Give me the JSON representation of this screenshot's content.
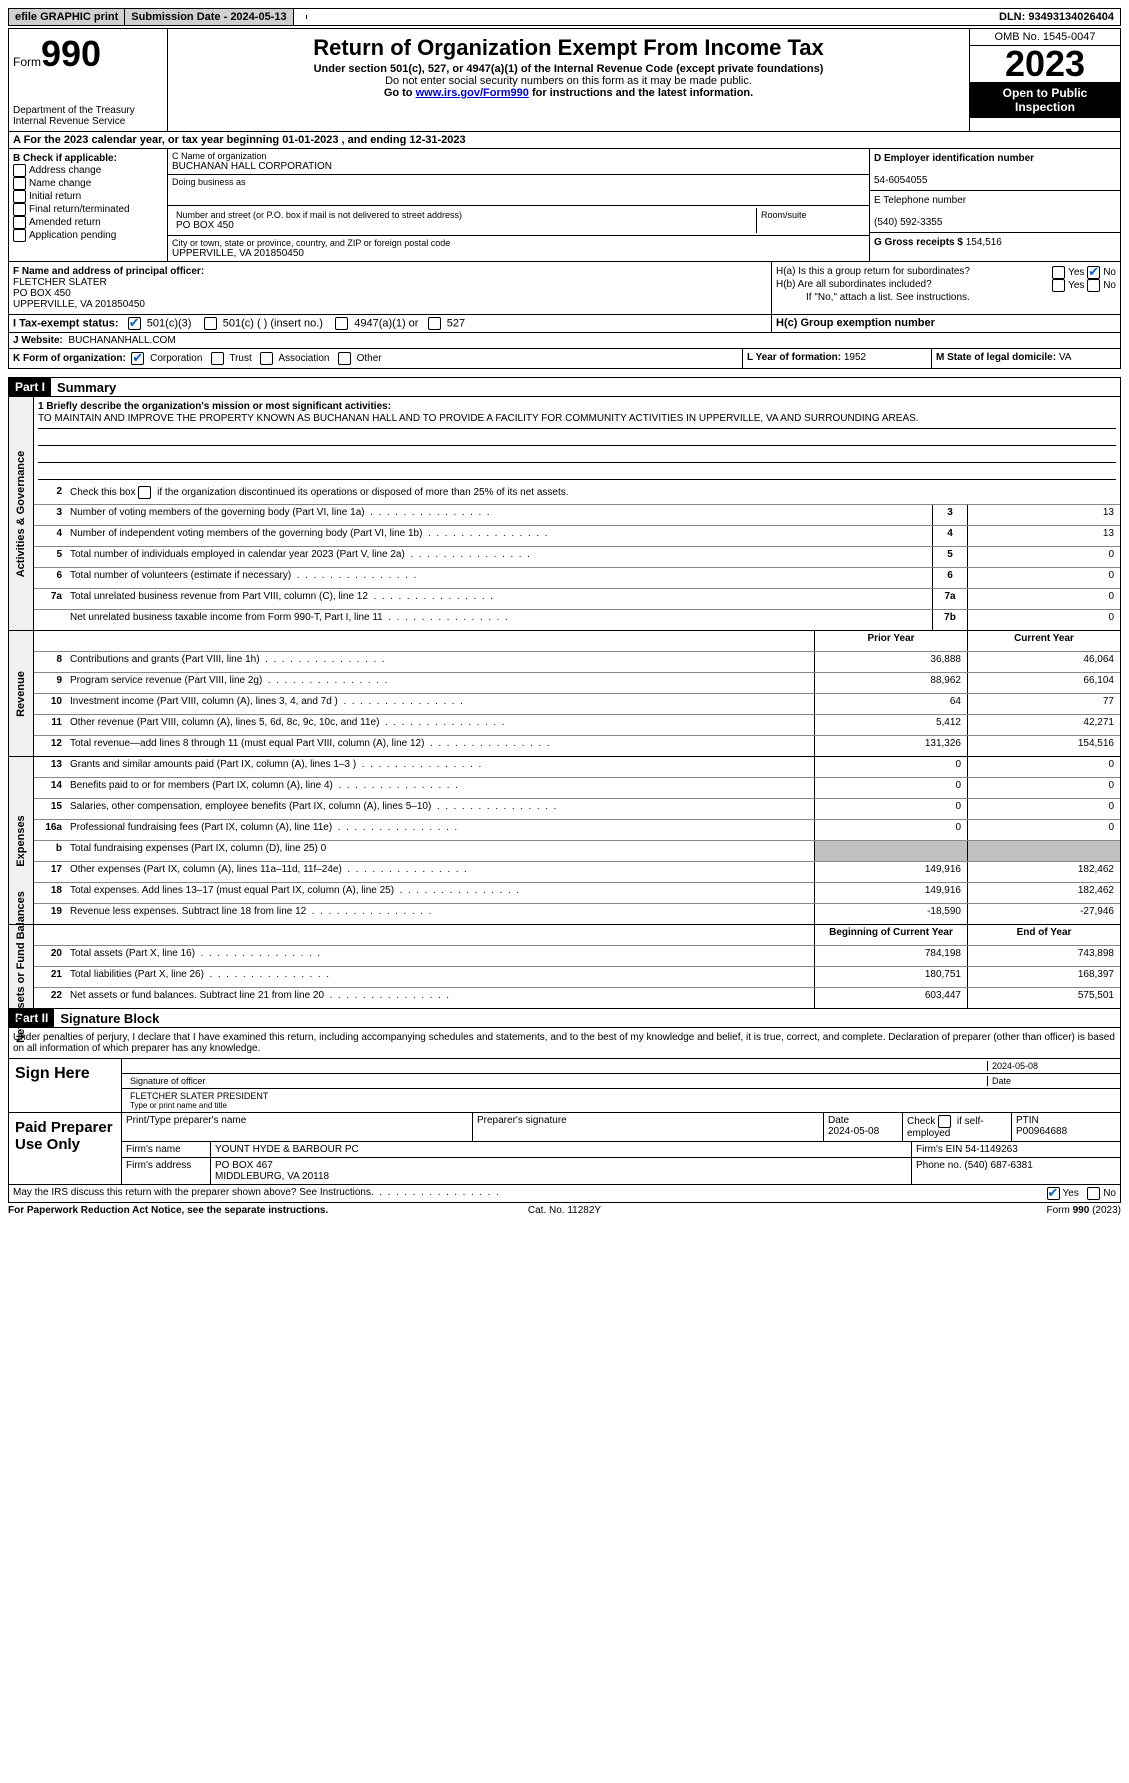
{
  "topbar": {
    "efile": "efile GRAPHIC print",
    "submission_label": "Submission Date - 2024-05-13",
    "dln": "DLN: 93493134026404"
  },
  "header": {
    "form_prefix": "Form",
    "form_number": "990",
    "dept": "Department of the Treasury",
    "irs": "Internal Revenue Service",
    "title": "Return of Organization Exempt From Income Tax",
    "subtitle": "Under section 501(c), 527, or 4947(a)(1) of the Internal Revenue Code (except private foundations)",
    "warn": "Do not enter social security numbers on this form as it may be made public.",
    "goto_prefix": "Go to ",
    "goto_link": "www.irs.gov/Form990",
    "goto_suffix": " for instructions and the latest information.",
    "omb": "OMB No. 1545-0047",
    "year": "2023",
    "open": "Open to Public Inspection"
  },
  "row_a": "A For the 2023 calendar year, or tax year beginning 01-01-2023   , and ending 12-31-2023",
  "section_b": {
    "label": "B Check if applicable:",
    "items": [
      "Address change",
      "Name change",
      "Initial return",
      "Final return/terminated",
      "Amended return",
      "Application pending"
    ]
  },
  "section_c": {
    "name_lbl": "C Name of organization",
    "name": "BUCHANAN HALL CORPORATION",
    "dba_lbl": "Doing business as",
    "street_lbl": "Number and street (or P.O. box if mail is not delivered to street address)",
    "street": "PO BOX 450",
    "suite_lbl": "Room/suite",
    "city_lbl": "City or town, state or province, country, and ZIP or foreign postal code",
    "city": "UPPERVILLE, VA  201850450"
  },
  "section_d": {
    "ein_lbl": "D Employer identification number",
    "ein": "54-6054055",
    "phone_lbl": "E Telephone number",
    "phone": "(540) 592-3355",
    "gross_lbl": "G Gross receipts $",
    "gross": "154,516"
  },
  "section_f": {
    "label": "F Name and address of principal officer:",
    "name": "FLETCHER SLATER",
    "addr1": "PO BOX 450",
    "addr2": "UPPERVILLE, VA  201850450"
  },
  "section_h": {
    "ha": "H(a)  Is this a group return for subordinates?",
    "hb": "H(b)  Are all subordinates included?",
    "hb_note": "If \"No,\" attach a list. See instructions.",
    "hc": "H(c)  Group exemption number",
    "yes": "Yes",
    "no": "No"
  },
  "row_i": {
    "label": "I   Tax-exempt status:",
    "opt1": "501(c)(3)",
    "opt2": "501(c) (  ) (insert no.)",
    "opt3": "4947(a)(1) or",
    "opt4": "527"
  },
  "row_j": {
    "label": "J   Website:",
    "value": "BUCHANANHALL.COM"
  },
  "row_k": {
    "label": "K Form of organization:",
    "opts": [
      "Corporation",
      "Trust",
      "Association",
      "Other"
    ],
    "l_label": "L Year of formation:",
    "l_val": "1952",
    "m_label": "M State of legal domicile:",
    "m_val": "VA"
  },
  "part1": {
    "header": "Part I",
    "title": "Summary",
    "mission_lbl": "1  Briefly describe the organization's mission or most significant activities:",
    "mission": "TO MAINTAIN AND IMPROVE THE PROPERTY KNOWN AS BUCHANAN HALL AND TO PROVIDE A FACILITY FOR COMMUNITY ACTIVITIES IN UPPERVILLE, VA AND SURROUNDING AREAS.",
    "line2": "Check this box      if the organization discontinued its operations or disposed of more than 25% of its net assets."
  },
  "sides": {
    "gov": "Activities & Governance",
    "rev": "Revenue",
    "exp": "Expenses",
    "net": "Net Assets or Fund Balances"
  },
  "gov_rows": [
    {
      "n": "3",
      "d": "Number of voting members of the governing body (Part VI, line 1a)",
      "box": "3",
      "v": "13"
    },
    {
      "n": "4",
      "d": "Number of independent voting members of the governing body (Part VI, line 1b)",
      "box": "4",
      "v": "13"
    },
    {
      "n": "5",
      "d": "Total number of individuals employed in calendar year 2023 (Part V, line 2a)",
      "box": "5",
      "v": "0"
    },
    {
      "n": "6",
      "d": "Total number of volunteers (estimate if necessary)",
      "box": "6",
      "v": "0"
    },
    {
      "n": "7a",
      "d": "Total unrelated business revenue from Part VIII, column (C), line 12",
      "box": "7a",
      "v": "0"
    },
    {
      "n": "",
      "d": "Net unrelated business taxable income from Form 990-T, Part I, line 11",
      "box": "7b",
      "v": "0"
    }
  ],
  "year_hdr": {
    "prior": "Prior Year",
    "current": "Current Year"
  },
  "rev_rows": [
    {
      "n": "8",
      "d": "Contributions and grants (Part VIII, line 1h)",
      "p": "36,888",
      "c": "46,064"
    },
    {
      "n": "9",
      "d": "Program service revenue (Part VIII, line 2g)",
      "p": "88,962",
      "c": "66,104"
    },
    {
      "n": "10",
      "d": "Investment income (Part VIII, column (A), lines 3, 4, and 7d )",
      "p": "64",
      "c": "77"
    },
    {
      "n": "11",
      "d": "Other revenue (Part VIII, column (A), lines 5, 6d, 8c, 9c, 10c, and 11e)",
      "p": "5,412",
      "c": "42,271"
    },
    {
      "n": "12",
      "d": "Total revenue—add lines 8 through 11 (must equal Part VIII, column (A), line 12)",
      "p": "131,326",
      "c": "154,516"
    }
  ],
  "exp_rows": [
    {
      "n": "13",
      "d": "Grants and similar amounts paid (Part IX, column (A), lines 1–3 )",
      "p": "0",
      "c": "0"
    },
    {
      "n": "14",
      "d": "Benefits paid to or for members (Part IX, column (A), line 4)",
      "p": "0",
      "c": "0"
    },
    {
      "n": "15",
      "d": "Salaries, other compensation, employee benefits (Part IX, column (A), lines 5–10)",
      "p": "0",
      "c": "0"
    },
    {
      "n": "16a",
      "d": "Professional fundraising fees (Part IX, column (A), line 11e)",
      "p": "0",
      "c": "0"
    },
    {
      "n": "b",
      "d": "Total fundraising expenses (Part IX, column (D), line 25) 0",
      "p": "",
      "c": "",
      "shade": true
    },
    {
      "n": "17",
      "d": "Other expenses (Part IX, column (A), lines 11a–11d, 11f–24e)",
      "p": "149,916",
      "c": "182,462"
    },
    {
      "n": "18",
      "d": "Total expenses. Add lines 13–17 (must equal Part IX, column (A), line 25)",
      "p": "149,916",
      "c": "182,462"
    },
    {
      "n": "19",
      "d": "Revenue less expenses. Subtract line 18 from line 12",
      "p": "-18,590",
      "c": "-27,946"
    }
  ],
  "net_hdr": {
    "begin": "Beginning of Current Year",
    "end": "End of Year"
  },
  "net_rows": [
    {
      "n": "20",
      "d": "Total assets (Part X, line 16)",
      "p": "784,198",
      "c": "743,898"
    },
    {
      "n": "21",
      "d": "Total liabilities (Part X, line 26)",
      "p": "180,751",
      "c": "168,397"
    },
    {
      "n": "22",
      "d": "Net assets or fund balances. Subtract line 21 from line 20",
      "p": "603,447",
      "c": "575,501"
    }
  ],
  "part2": {
    "header": "Part II",
    "title": "Signature Block",
    "declaration": "Under penalties of perjury, I declare that I have examined this return, including accompanying schedules and statements, and to the best of my knowledge and belief, it is true, correct, and complete. Declaration of preparer (other than officer) is based on all information of which preparer has any knowledge."
  },
  "sign": {
    "label": "Sign Here",
    "date": "2024-05-08",
    "sig_lbl": "Signature of officer",
    "name": "FLETCHER SLATER PRESIDENT",
    "name_lbl": "Type or print name and title",
    "date_lbl": "Date"
  },
  "paid": {
    "label": "Paid Preparer Use Only",
    "prep_name_lbl": "Print/Type preparer's name",
    "prep_sig_lbl": "Preparer's signature",
    "date_lbl": "Date",
    "date": "2024-05-08",
    "check_lbl": "Check       if self-employed",
    "ptin_lbl": "PTIN",
    "ptin": "P00964688",
    "firm_name_lbl": "Firm's name",
    "firm_name": "YOUNT HYDE & BARBOUR PC",
    "firm_ein_lbl": "Firm's EIN",
    "firm_ein": "54-1149263",
    "firm_addr_lbl": "Firm's address",
    "firm_addr1": "PO BOX 467",
    "firm_addr2": "MIDDLEBURG, VA  20118",
    "phone_lbl": "Phone no.",
    "phone": "(540) 687-6381"
  },
  "footer": {
    "discuss": "May the IRS discuss this return with the preparer shown above? See Instructions.",
    "yes": "Yes",
    "no": "No",
    "paperwork": "For Paperwork Reduction Act Notice, see the separate instructions.",
    "cat": "Cat. No. 11282Y",
    "form": "Form 990 (2023)"
  }
}
